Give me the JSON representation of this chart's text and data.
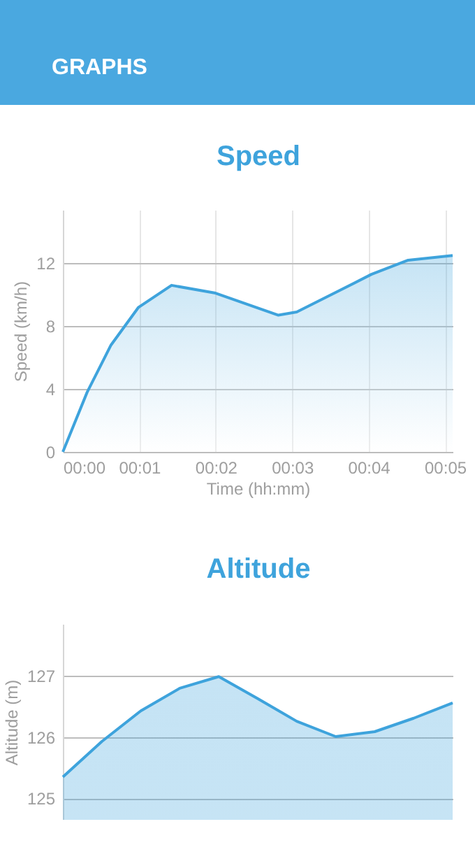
{
  "chart_data": [
    {
      "type": "area",
      "title": "Speed",
      "annotations": [
        "GRAPHS"
      ],
      "xlabel": "Time (hh:mm)",
      "ylabel": "Speed (km/h)",
      "x": [
        0,
        0.0053,
        0.0105,
        0.0165,
        0.0237,
        0.0333,
        0.047,
        0.051,
        0.0592,
        0.0673,
        0.0753,
        0.085
      ],
      "series": [
        {
          "color": "#3ea3dc",
          "values": [
            0,
            3.8,
            6.8,
            9.2,
            10.6,
            10.1,
            8.7,
            8.9,
            10.1,
            11.3,
            12.2,
            12.5
          ]
        }
      ],
      "xlim": [
        0,
        0.085
      ],
      "xticks": [
        {
          "value": 0,
          "label": "00:00"
        },
        {
          "value": 0.016667,
          "label": "00:01"
        },
        {
          "value": 0.033333,
          "label": "00:02"
        },
        {
          "value": 0.05,
          "label": "00:03"
        },
        {
          "value": 0.066667,
          "label": "00:04"
        },
        {
          "value": 0.083333,
          "label": "00:05"
        }
      ],
      "ylim": [
        0,
        15.4
      ],
      "yticks": [
        0,
        4,
        8,
        12
      ],
      "grid": true,
      "legend": false
    },
    {
      "type": "area",
      "title": "Altitude",
      "ylabel": "Altitude (m)",
      "categories": [
        null,
        null,
        null,
        null,
        null,
        null,
        null,
        null,
        null,
        null,
        null
      ],
      "series": [
        {
          "color": "#3ea3dc",
          "values": [
            125.35,
            125.93,
            126.43,
            126.8,
            126.99,
            126.63,
            126.26,
            126.01,
            126.09,
            126.31,
            126.56
          ]
        }
      ],
      "ylim": [
        124.65,
        127.85
      ],
      "yticks": [
        125,
        126,
        127
      ],
      "grid": "y",
      "legend": false
    }
  ]
}
